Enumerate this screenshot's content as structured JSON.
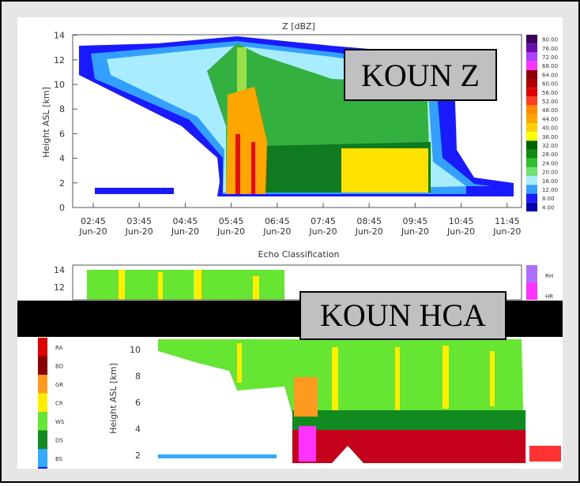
{
  "top_panel": {
    "title": "Z [dBZ]",
    "y_label": "Height ASL [km]",
    "y_ticks": [
      "0",
      "2",
      "4",
      "6",
      "8",
      "10",
      "12",
      "14"
    ],
    "x_ticks": [
      {
        "time": "02:45",
        "date": "Jun-20"
      },
      {
        "time": "03:45",
        "date": "Jun-20"
      },
      {
        "time": "04:45",
        "date": "Jun-20"
      },
      {
        "time": "05:45",
        "date": "Jun-20"
      },
      {
        "time": "06:45",
        "date": "Jun-20"
      },
      {
        "time": "07:45",
        "date": "Jun-20"
      },
      {
        "time": "08:45",
        "date": "Jun-20"
      },
      {
        "time": "09:45",
        "date": "Jun-20"
      },
      {
        "time": "10:45",
        "date": "Jun-20"
      },
      {
        "time": "11:45",
        "date": "Jun-20"
      }
    ],
    "colorbar_labels": [
      "80.00",
      "76.00",
      "72.00",
      "68.00",
      "64.00",
      "60.00",
      "56.00",
      "52.00",
      "48.00",
      "44.00",
      "40.00",
      "36.00",
      "32.00",
      "28.00",
      "24.00",
      "20.00",
      "16.00",
      "12.00",
      "8.00",
      "4.00"
    ],
    "overlay": "KOUN Z"
  },
  "bottom_panel": {
    "title": "Echo Classification",
    "y_ticks_upper": [
      "12",
      "14"
    ],
    "y_label": "Height ASL [km]",
    "y_ticks_lower": [
      "2",
      "4",
      "6",
      "8",
      "10"
    ],
    "legend": [
      "RA",
      "BD",
      "GR",
      "CR",
      "WS",
      "DS",
      "BS"
    ],
    "colorbar_labels": [
      "RH",
      "HR"
    ],
    "overlay": "KOUN HCA"
  }
}
